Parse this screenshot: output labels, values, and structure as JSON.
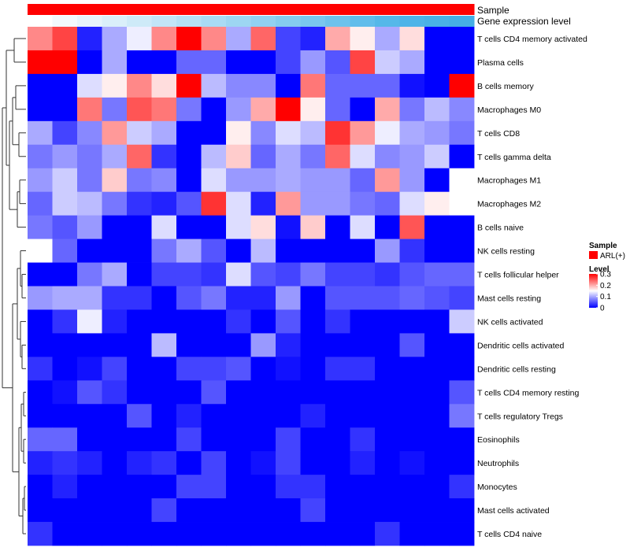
{
  "chart_data": {
    "type": "heatmap",
    "title": "",
    "annotations": [
      {
        "name": "Sample",
        "legend_title": "Sample",
        "legend_entry": "ARL(+)",
        "color": "#ff0000"
      },
      {
        "name": "Gene expression level",
        "colors": [
          "#ffffff",
          "#f2f9fd",
          "#e6f4fb",
          "#daeffa",
          "#ceeaf8",
          "#c2e5f7",
          "#b5e0f5",
          "#a9dbf4",
          "#9dd6f2",
          "#91d1f1",
          "#85ccef",
          "#79c7ee",
          "#6dc2ec",
          "#61bdeb",
          "#55b8e9",
          "#4db4e8",
          "#49b1e6",
          "#45aee5"
        ]
      }
    ],
    "rows": [
      "T cells CD4 memory activated",
      "Plasma cells",
      "B cells memory",
      "Macrophages M0",
      "T cells CD8",
      "T cells gamma delta",
      "Macrophages M1",
      "Macrophages M2",
      "B cells naive",
      "NK cells resting",
      "T cells follicular helper",
      "Mast cells resting",
      "NK cells activated",
      "Dendritic cells activated",
      "Dendritic cells resting",
      "T cells CD4 memory resting",
      "T cells regulatory  Tregs",
      "Eosinophils",
      "Neutrophils",
      "Monocytes",
      "Mast cells activated",
      "T cells CD4 naive"
    ],
    "n_columns": 18,
    "values": [
      [
        0.22,
        0.26,
        0.02,
        0.1,
        0.14,
        0.22,
        0.3,
        0.22,
        0.1,
        0.24,
        0.04,
        0.02,
        0.2,
        0.16,
        0.1,
        0.17,
        0.0,
        0.0
      ],
      [
        0.3,
        0.3,
        0.0,
        0.1,
        0.0,
        0.0,
        0.06,
        0.06,
        0.0,
        0.0,
        0.04,
        0.09,
        0.05,
        0.26,
        0.12,
        0.1,
        0.0,
        0.0
      ],
      [
        0.0,
        0.0,
        0.13,
        0.16,
        0.22,
        0.17,
        0.3,
        0.11,
        0.08,
        0.08,
        0.0,
        0.23,
        0.06,
        0.06,
        0.06,
        0.01,
        0.0,
        0.3
      ],
      [
        0.0,
        0.0,
        0.23,
        0.07,
        0.25,
        0.23,
        0.07,
        0.0,
        0.09,
        0.2,
        0.3,
        0.16,
        0.06,
        0.0,
        0.2,
        0.07,
        0.11,
        0.08
      ],
      [
        0.1,
        0.04,
        0.08,
        0.21,
        0.12,
        0.1,
        0.0,
        0.0,
        0.16,
        0.08,
        0.13,
        0.11,
        0.27,
        0.21,
        0.14,
        0.1,
        0.09,
        0.07
      ],
      [
        0.07,
        0.09,
        0.07,
        0.1,
        0.24,
        0.03,
        0.0,
        0.11,
        0.18,
        0.06,
        0.1,
        0.07,
        0.24,
        0.13,
        0.08,
        0.09,
        0.12,
        0.0
      ],
      [
        0.09,
        0.12,
        0.07,
        0.18,
        0.07,
        0.08,
        0.0,
        0.13,
        0.09,
        0.09,
        0.1,
        0.09,
        0.09,
        0.06,
        0.21,
        0.09,
        0.0,
        0.15
      ],
      [
        0.06,
        0.12,
        0.11,
        0.07,
        0.03,
        0.02,
        0.05,
        0.27,
        0.13,
        0.02,
        0.21,
        0.09,
        0.09,
        0.07,
        0.06,
        0.13,
        0.16,
        0.15
      ],
      [
        0.07,
        0.05,
        0.09,
        0.0,
        0.0,
        0.13,
        0.0,
        0.0,
        0.13,
        0.17,
        0.01,
        0.18,
        0.0,
        0.13,
        0.0,
        0.25,
        0.0,
        0.0
      ],
      [
        0.15,
        0.06,
        0.0,
        0.0,
        0.0,
        0.07,
        0.1,
        0.05,
        0.0,
        0.11,
        0.0,
        0.0,
        0.0,
        0.0,
        0.09,
        0.03,
        0.0,
        0.0
      ],
      [
        0.0,
        0.0,
        0.07,
        0.1,
        0.0,
        0.04,
        0.04,
        0.03,
        0.13,
        0.05,
        0.04,
        0.07,
        0.04,
        0.04,
        0.03,
        0.05,
        0.06,
        0.06
      ],
      [
        0.09,
        0.1,
        0.1,
        0.03,
        0.03,
        0.0,
        0.05,
        0.07,
        0.02,
        0.02,
        0.09,
        0.0,
        0.05,
        0.05,
        0.05,
        0.06,
        0.05,
        0.04
      ],
      [
        0.0,
        0.03,
        0.14,
        0.02,
        0.0,
        0.0,
        0.0,
        0.0,
        0.03,
        0.0,
        0.05,
        0.0,
        0.03,
        0.0,
        0.0,
        0.0,
        0.0,
        0.12
      ],
      [
        0.0,
        0.0,
        0.0,
        0.0,
        0.0,
        0.11,
        0.0,
        0.0,
        0.0,
        0.09,
        0.02,
        0.0,
        0.0,
        0.0,
        0.0,
        0.05,
        0.0,
        0.0
      ],
      [
        0.03,
        0.0,
        0.01,
        0.04,
        0.0,
        0.0,
        0.04,
        0.04,
        0.05,
        0.0,
        0.01,
        0.0,
        0.03,
        0.03,
        0.0,
        0.0,
        0.0,
        0.0
      ],
      [
        0.0,
        0.01,
        0.05,
        0.03,
        0.0,
        0.0,
        0.0,
        0.05,
        0.0,
        0.0,
        0.0,
        0.0,
        0.0,
        0.0,
        0.0,
        0.0,
        0.0,
        0.05
      ],
      [
        0.0,
        0.0,
        0.0,
        0.0,
        0.05,
        0.0,
        0.02,
        0.0,
        0.0,
        0.0,
        0.0,
        0.02,
        0.0,
        0.0,
        0.0,
        0.0,
        0.0,
        0.07
      ],
      [
        0.06,
        0.06,
        0.0,
        0.0,
        0.0,
        0.0,
        0.04,
        0.0,
        0.0,
        0.0,
        0.04,
        0.0,
        0.0,
        0.03,
        0.0,
        0.0,
        0.0,
        0.0
      ],
      [
        0.02,
        0.03,
        0.02,
        0.0,
        0.02,
        0.03,
        0.0,
        0.04,
        0.0,
        0.01,
        0.04,
        0.0,
        0.0,
        0.02,
        0.0,
        0.01,
        0.0,
        0.0
      ],
      [
        0.0,
        0.02,
        0.0,
        0.0,
        0.0,
        0.0,
        0.04,
        0.04,
        0.0,
        0.0,
        0.03,
        0.03,
        0.0,
        0.0,
        0.0,
        0.0,
        0.0,
        0.03
      ],
      [
        0.0,
        0.0,
        0.0,
        0.0,
        0.0,
        0.04,
        0.0,
        0.0,
        0.0,
        0.0,
        0.0,
        0.04,
        0.0,
        0.0,
        0.0,
        0.0,
        0.0,
        0.0
      ],
      [
        0.03,
        0.0,
        0.0,
        0.0,
        0.0,
        0.0,
        0.0,
        0.0,
        0.0,
        0.0,
        0.0,
        0.0,
        0.0,
        0.0,
        0.03,
        0.0,
        0.0,
        0.0
      ]
    ],
    "color_scale": {
      "title": "Level",
      "min": 0,
      "mid": 0.15,
      "max": 0.3,
      "colors": [
        "#0000ff",
        "#ffffff",
        "#ff0000"
      ],
      "ticks": [
        0.3,
        0.2,
        0.1,
        0
      ],
      "tick_labels": [
        "0.3",
        "0.2",
        "0.1",
        "0"
      ]
    },
    "row_dendrogram": "left"
  }
}
